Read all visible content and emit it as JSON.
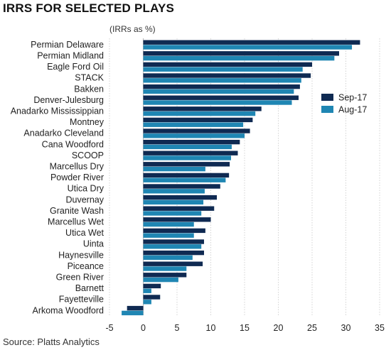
{
  "title": "IRRS FOR SELECTED PLAYS",
  "source": "Source: Platts Analytics",
  "chart_data": {
    "type": "bar",
    "orientation": "horizontal",
    "title": "IRRS FOR SELECTED PLAYS",
    "unit_label": "(IRRs as %)",
    "categories": [
      "Permian Delaware",
      "Permian Midland",
      "Eagle Ford Oil",
      "STACK",
      "Bakken",
      "Denver-Julesburg",
      "Anadarko Mississippian",
      "Montney",
      "Anadarko Cleveland",
      "Cana Woodford",
      "SCOOP",
      "Marcellus Dry",
      "Powder River",
      "Utica Dry",
      "Duvernay",
      "Granite Wash",
      "Marcellus Wet",
      "Utica Wet",
      "Uinta",
      "Haynesville",
      "Piceance",
      "Green River",
      "Barnett",
      "Fayetteville",
      "Arkoma Woodford"
    ],
    "series": [
      {
        "name": "Sep-17",
        "color": "#0f2a52",
        "values": [
          32.1,
          29.0,
          25.0,
          24.8,
          23.2,
          23.0,
          17.5,
          16.2,
          15.8,
          14.3,
          14.0,
          12.8,
          12.7,
          11.4,
          10.9,
          10.5,
          10.0,
          9.2,
          9.0,
          9.0,
          8.8,
          6.4,
          2.6,
          2.5,
          -2.4
        ]
      },
      {
        "name": "Aug-17",
        "color": "#1f86b3",
        "values": [
          30.9,
          28.3,
          23.6,
          23.4,
          22.3,
          22.0,
          16.6,
          14.8,
          15.0,
          13.1,
          13.0,
          9.2,
          12.2,
          9.1,
          8.9,
          8.6,
          7.5,
          7.5,
          8.6,
          7.3,
          6.4,
          5.2,
          1.2,
          1.2,
          -3.2
        ]
      }
    ],
    "x_ticks": [
      -5,
      0,
      5,
      10,
      15,
      20,
      25,
      30,
      35
    ],
    "xlim": [
      -5,
      35
    ],
    "grid": "vertical",
    "legend_position": "right"
  }
}
